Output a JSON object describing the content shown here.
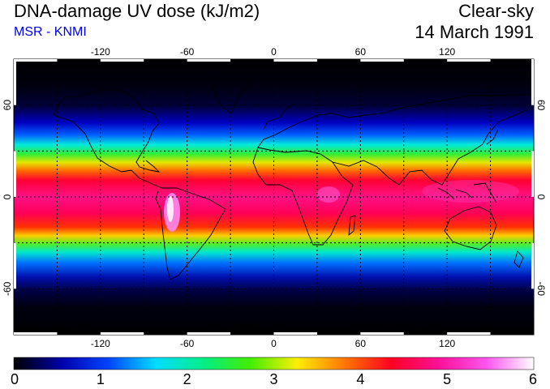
{
  "header": {
    "title": "DNA-damage UV dose (kJ/m2)",
    "source": "MSR - KNMI",
    "condition": "Clear-sky",
    "date": "14 March 1991"
  },
  "map": {
    "projection": "equirectangular",
    "lon_range": [
      -180,
      180
    ],
    "lat_range": [
      -90,
      90
    ],
    "lon_ticks": [
      "-120",
      "-60",
      "0",
      "60",
      "120"
    ],
    "lat_ticks": [
      "60",
      "0",
      "-60"
    ],
    "gridlines": "dotted",
    "coastlines": true,
    "background": "#000000"
  },
  "colorbar": {
    "min": 0,
    "max": 6,
    "ticks": [
      "0",
      "1",
      "2",
      "3",
      "4",
      "5",
      "6"
    ],
    "colors": [
      "#000000",
      "#0000aa",
      "#0044ff",
      "#00ddff",
      "#00ee88",
      "#44ee00",
      "#ffee00",
      "#ff7700",
      "#ff0022",
      "#ff1199",
      "#ff55ee",
      "#ffffff"
    ]
  }
}
